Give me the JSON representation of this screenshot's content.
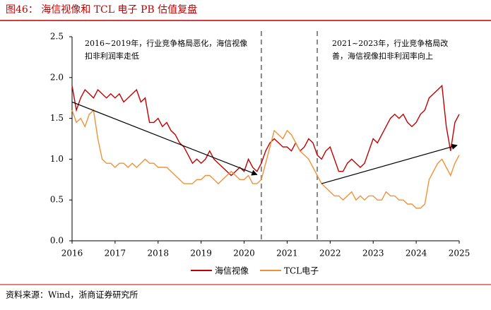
{
  "chart_data": {
    "type": "line",
    "title": "图46：  海信视像和 TCL 电子 PB 估值复盘",
    "source": "资料来源：Wind，浙商证券研究所",
    "annotations": [
      [
        "2016~2019年，行业竞争格局恶化，海信视像",
        "扣非利润率走低"
      ],
      [
        "2021~2023年，行业竞争格局改",
        "善，海信视像扣非利润率向上"
      ]
    ],
    "vlines": [
      2020.4,
      2021.7
    ],
    "arrows": [
      {
        "from": [
          2016.0,
          1.7
        ],
        "to": [
          2020.3,
          0.81
        ]
      },
      {
        "from": [
          2021.8,
          0.7
        ],
        "to": [
          2024.95,
          1.17
        ]
      }
    ],
    "x": [
      2016.0,
      2016.1,
      2016.2,
      2016.3,
      2016.4,
      2016.5,
      2016.6,
      2016.7,
      2016.8,
      2016.9,
      2017.0,
      2017.1,
      2017.2,
      2017.3,
      2017.4,
      2017.5,
      2017.6,
      2017.7,
      2017.8,
      2017.9,
      2018.0,
      2018.1,
      2018.2,
      2018.3,
      2018.4,
      2018.5,
      2018.6,
      2018.7,
      2018.8,
      2018.9,
      2019.0,
      2019.1,
      2019.2,
      2019.3,
      2019.4,
      2019.5,
      2019.6,
      2019.7,
      2019.8,
      2019.9,
      2020.0,
      2020.1,
      2020.2,
      2020.3,
      2020.4,
      2020.5,
      2020.6,
      2020.7,
      2020.8,
      2020.9,
      2021.0,
      2021.1,
      2021.2,
      2021.3,
      2021.4,
      2021.5,
      2021.6,
      2021.7,
      2021.8,
      2021.9,
      2022.0,
      2022.1,
      2022.2,
      2022.3,
      2022.4,
      2022.5,
      2022.6,
      2022.7,
      2022.8,
      2022.9,
      2023.0,
      2023.1,
      2023.2,
      2023.3,
      2023.4,
      2023.5,
      2023.6,
      2023.7,
      2023.8,
      2023.9,
      2024.0,
      2024.1,
      2024.2,
      2024.3,
      2024.4,
      2024.5,
      2024.6,
      2024.7,
      2024.8,
      2024.9,
      2025.0
    ],
    "series": [
      {
        "name": "海信视像",
        "color": "#c00000",
        "values": [
          1.9,
          1.6,
          1.75,
          1.85,
          1.8,
          1.75,
          1.85,
          1.8,
          1.75,
          1.8,
          1.75,
          1.8,
          1.7,
          1.75,
          1.8,
          1.85,
          1.7,
          1.75,
          1.45,
          1.45,
          1.5,
          1.4,
          1.45,
          1.35,
          1.3,
          1.2,
          1.15,
          1.05,
          0.95,
          1.0,
          0.95,
          1.0,
          1.1,
          1.0,
          0.95,
          0.9,
          0.85,
          0.8,
          0.85,
          0.9,
          0.85,
          1.0,
          0.9,
          0.85,
          0.95,
          1.1,
          1.2,
          1.25,
          1.2,
          1.15,
          1.15,
          1.1,
          1.2,
          1.1,
          1.15,
          1.25,
          1.2,
          1.05,
          1.0,
          1.1,
          1.15,
          1.0,
          0.85,
          0.85,
          0.95,
          1.0,
          0.95,
          0.9,
          0.95,
          1.1,
          1.25,
          1.2,
          1.3,
          1.4,
          1.5,
          1.55,
          1.5,
          1.55,
          1.45,
          1.4,
          1.45,
          1.55,
          1.6,
          1.75,
          1.8,
          1.85,
          1.9,
          1.4,
          1.1,
          1.45,
          1.55
        ]
      },
      {
        "name": "TCL电子",
        "color": "#f0913a",
        "values": [
          1.6,
          1.45,
          1.5,
          1.4,
          1.55,
          1.6,
          1.25,
          1.0,
          0.95,
          0.95,
          0.9,
          0.95,
          0.95,
          0.9,
          0.95,
          0.9,
          0.95,
          1.0,
          0.95,
          0.95,
          0.9,
          0.9,
          0.9,
          0.85,
          0.8,
          0.75,
          0.7,
          0.7,
          0.7,
          0.75,
          0.75,
          0.8,
          0.8,
          0.75,
          0.7,
          0.75,
          0.8,
          0.85,
          0.8,
          0.75,
          0.75,
          0.8,
          0.7,
          0.7,
          0.75,
          0.95,
          1.15,
          1.35,
          1.3,
          1.25,
          1.35,
          1.3,
          1.2,
          1.1,
          1.05,
          1.0,
          0.9,
          0.8,
          0.7,
          0.65,
          0.6,
          0.55,
          0.55,
          0.5,
          0.55,
          0.6,
          0.5,
          0.55,
          0.5,
          0.55,
          0.55,
          0.5,
          0.5,
          0.6,
          0.55,
          0.55,
          0.5,
          0.5,
          0.45,
          0.45,
          0.4,
          0.4,
          0.45,
          0.75,
          0.85,
          0.95,
          1.0,
          0.9,
          0.8,
          0.95,
          1.05
        ]
      }
    ],
    "xlim": [
      2016,
      2025
    ],
    "xticks": [
      2016,
      2017,
      2018,
      2019,
      2020,
      2021,
      2022,
      2023,
      2024,
      2025
    ],
    "ylim": [
      0,
      2.5
    ],
    "yticks": [
      {
        "value": 0,
        "label": "0.0"
      },
      0.5,
      {
        "value": 1,
        "label": "1.0"
      },
      1.5,
      {
        "value": 2,
        "label": "2.0"
      },
      2.5
    ]
  }
}
